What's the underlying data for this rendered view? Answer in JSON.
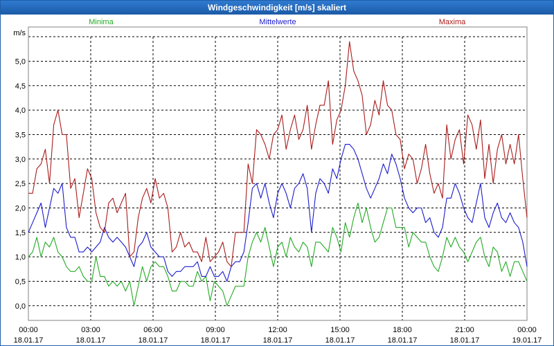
{
  "window": {
    "title": "Windgeschwindigkeit [m/s] skaliert"
  },
  "colors": {
    "minima": "#22aa22",
    "mittel": "#1a1acc",
    "maxima": "#aa1a1a",
    "grid": "#000000"
  },
  "chart_data": {
    "type": "line",
    "title": "Windgeschwindigkeit [m/s] skaliert",
    "ylabel": "m/s",
    "xlabel": "",
    "ylim": [
      -0.3,
      5.7
    ],
    "xlim": [
      0,
      24
    ],
    "grid": true,
    "legend_placement": "top",
    "y_ticks": [
      "0,0",
      "0,5",
      "1,0",
      "1,5",
      "2,0",
      "2,5",
      "3,0",
      "3,5",
      "4,0",
      "4,5",
      "5,0"
    ],
    "x_ticks": [
      {
        "time": "00:00",
        "date": "18.01.17"
      },
      {
        "time": "03:00",
        "date": "18.01.17"
      },
      {
        "time": "06:00",
        "date": "18.01.17"
      },
      {
        "time": "09:00",
        "date": "18.01.17"
      },
      {
        "time": "12:00",
        "date": "18.01.17"
      },
      {
        "time": "15:00",
        "date": "18.01.17"
      },
      {
        "time": "18:00",
        "date": "18.01.17"
      },
      {
        "time": "21:00",
        "date": "18.01.17"
      },
      {
        "time": "00:00",
        "date": "19.01.17"
      }
    ],
    "series": [
      {
        "name": "Minima",
        "values": [
          1.0,
          1.1,
          1.4,
          1.0,
          1.3,
          1.2,
          1.4,
          1.1,
          1.0,
          0.8,
          0.7,
          0.7,
          0.8,
          0.6,
          0.5,
          0.5,
          1.0,
          0.6,
          0.6,
          0.4,
          0.5,
          0.4,
          0.5,
          0.3,
          0.5,
          0.0,
          0.4,
          0.8,
          0.5,
          0.8,
          0.9,
          0.8,
          0.8,
          0.6,
          0.3,
          0.3,
          0.5,
          0.5,
          0.4,
          0.4,
          0.7,
          0.5,
          0.6,
          0.1,
          0.5,
          0.4,
          0.3,
          0.0,
          0.2,
          0.4,
          0.4,
          0.4,
          1.0,
          1.3,
          1.5,
          1.3,
          1.6,
          1.2,
          0.8,
          1.2,
          1.3,
          1.0,
          1.4,
          1.2,
          1.1,
          1.3,
          1.2,
          0.8,
          1.3,
          1.3,
          1.2,
          1.1,
          1.6,
          1.4,
          1.1,
          1.7,
          1.4,
          1.8,
          2.1,
          1.7,
          2.0,
          1.6,
          1.3,
          1.4,
          1.7,
          2.0,
          2.0,
          1.6,
          1.6,
          1.6,
          1.2,
          1.5,
          1.4,
          1.3,
          1.3,
          1.0,
          0.8,
          0.7,
          1.0,
          1.4,
          1.2,
          1.4,
          1.2,
          1.1,
          0.9,
          1.1,
          1.3,
          1.4,
          1.0,
          0.8,
          1.2,
          1.1,
          0.7,
          0.9,
          0.6,
          0.9,
          0.9,
          0.7,
          0.5
        ]
      },
      {
        "name": "Mittelwerte",
        "values": [
          1.5,
          1.7,
          1.9,
          2.1,
          1.6,
          2.0,
          2.4,
          2.3,
          2.5,
          1.6,
          1.4,
          1.4,
          1.1,
          1.1,
          1.2,
          1.1,
          1.2,
          1.3,
          1.6,
          1.4,
          1.3,
          1.4,
          1.3,
          1.2,
          1.0,
          0.8,
          1.2,
          1.3,
          1.5,
          1.2,
          1.1,
          1.0,
          1.0,
          0.7,
          0.6,
          0.7,
          0.7,
          0.8,
          0.8,
          0.8,
          0.9,
          0.6,
          0.6,
          0.8,
          0.6,
          0.6,
          0.7,
          0.5,
          0.8,
          0.9,
          0.9,
          1.1,
          1.7,
          2.4,
          2.5,
          2.2,
          2.5,
          2.1,
          1.8,
          2.3,
          2.5,
          2.3,
          2.0,
          2.4,
          2.5,
          2.7,
          2.4,
          1.5,
          2.3,
          2.6,
          2.5,
          2.3,
          2.8,
          2.6,
          3.0,
          3.3,
          3.3,
          3.2,
          3.0,
          2.7,
          2.4,
          2.2,
          2.4,
          2.6,
          2.9,
          2.7,
          3.1,
          2.9,
          2.6,
          2.2,
          2.0,
          1.9,
          2.0,
          2.0,
          1.7,
          1.8,
          1.5,
          1.4,
          1.6,
          2.2,
          2.2,
          2.5,
          2.3,
          2.0,
          1.8,
          1.7,
          2.1,
          2.5,
          1.8,
          1.6,
          1.9,
          2.1,
          1.8,
          1.7,
          1.9,
          1.7,
          1.6,
          1.3,
          0.8
        ]
      },
      {
        "name": "Maxima",
        "values": [
          2.3,
          2.3,
          2.8,
          2.9,
          3.2,
          2.5,
          3.7,
          4.0,
          3.5,
          3.5,
          2.4,
          2.6,
          1.8,
          2.3,
          2.8,
          2.6,
          1.9,
          1.6,
          1.5,
          2.1,
          2.2,
          1.9,
          2.1,
          2.3,
          1.0,
          1.1,
          1.8,
          2.2,
          2.4,
          2.1,
          2.6,
          2.2,
          2.3,
          2.0,
          1.1,
          1.2,
          1.5,
          1.2,
          1.3,
          1.1,
          1.1,
          0.9,
          1.4,
          0.9,
          1.0,
          1.1,
          1.3,
          0.9,
          0.8,
          1.5,
          1.5,
          1.5,
          2.9,
          2.5,
          3.6,
          3.5,
          3.3,
          3.0,
          3.5,
          3.6,
          3.9,
          3.2,
          3.6,
          3.9,
          3.4,
          3.6,
          4.1,
          3.2,
          3.7,
          4.1,
          4.1,
          4.6,
          3.3,
          3.8,
          4.0,
          4.5,
          5.4,
          4.8,
          4.6,
          4.3,
          3.5,
          3.7,
          4.2,
          3.9,
          4.6,
          4.1,
          4.0,
          3.5,
          3.4,
          2.8,
          3.1,
          3.0,
          2.5,
          2.8,
          3.3,
          2.7,
          2.3,
          2.5,
          2.2,
          3.7,
          3.0,
          3.4,
          3.6,
          2.9,
          3.9,
          3.7,
          3.2,
          3.8,
          2.6,
          3.3,
          2.5,
          3.2,
          3.5,
          2.9,
          3.3,
          2.9,
          3.5,
          2.6,
          1.8
        ]
      }
    ]
  }
}
